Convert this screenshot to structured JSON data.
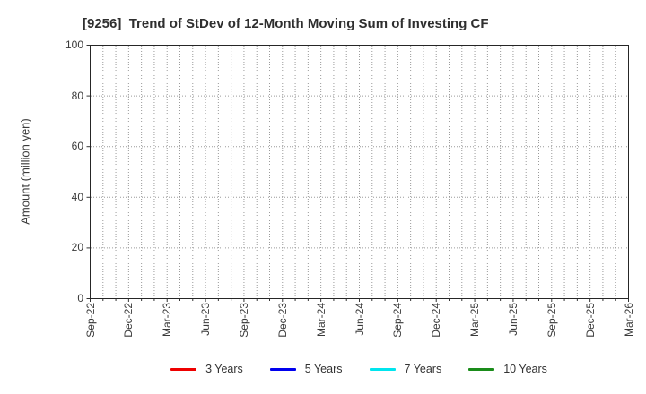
{
  "title": "[9256]  Trend of StDev of 12-Month Moving Sum of Investing CF",
  "chart_data": {
    "type": "line",
    "title": "[9256]  Trend of StDev of 12-Month Moving Sum of Investing CF",
    "xlabel": "",
    "ylabel": "Amount (million yen)",
    "ylim": [
      0,
      100
    ],
    "yticks": [
      0,
      20,
      40,
      60,
      80,
      100
    ],
    "x_ticklabels": [
      "Sep-22",
      "Dec-22",
      "Mar-23",
      "Jun-23",
      "Sep-23",
      "Dec-23",
      "Mar-24",
      "Jun-24",
      "Sep-24",
      "Dec-24",
      "Mar-25",
      "Jun-25",
      "Sep-25",
      "Dec-25",
      "Mar-26"
    ],
    "x_minor_divisions": 42,
    "grid": true,
    "grid_style": "dotted",
    "legend_position": "bottom",
    "series": [
      {
        "name": "3 Years",
        "color": "#ee0000",
        "values": []
      },
      {
        "name": "5 Years",
        "color": "#0000ee",
        "values": []
      },
      {
        "name": "7 Years",
        "color": "#00e5ee",
        "values": []
      },
      {
        "name": "10 Years",
        "color": "#1a8c1a",
        "values": []
      }
    ]
  },
  "colors": {
    "frame": "#262626",
    "grid": "#9a9a9a",
    "tick": "#333333",
    "title_text": "#2f2f2f",
    "tick_text": "#3a3a3a"
  }
}
